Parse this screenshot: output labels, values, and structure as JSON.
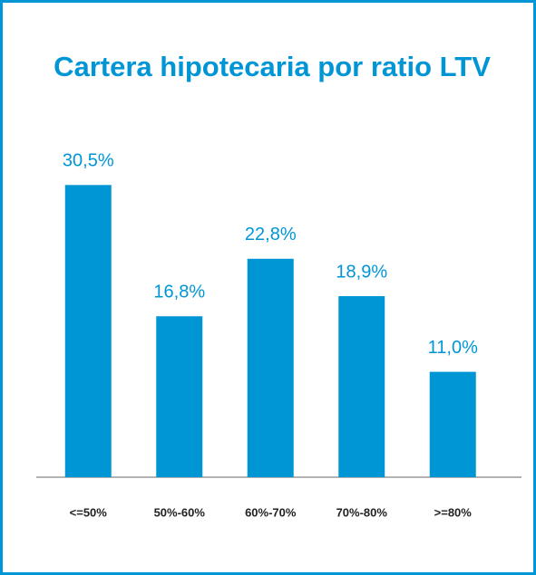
{
  "chart_data": {
    "type": "bar",
    "title": "Cartera hipotecaria por ratio LTV",
    "categories": [
      "<=50%",
      "50%-60%",
      "60%-70%",
      "70%-80%",
      ">=80%"
    ],
    "values": [
      30.5,
      16.8,
      22.8,
      18.9,
      11.0
    ],
    "value_labels": [
      "30,5%",
      "16,8%",
      "22,8%",
      "18,9%",
      "11,0%"
    ],
    "color": "#0096d6"
  }
}
